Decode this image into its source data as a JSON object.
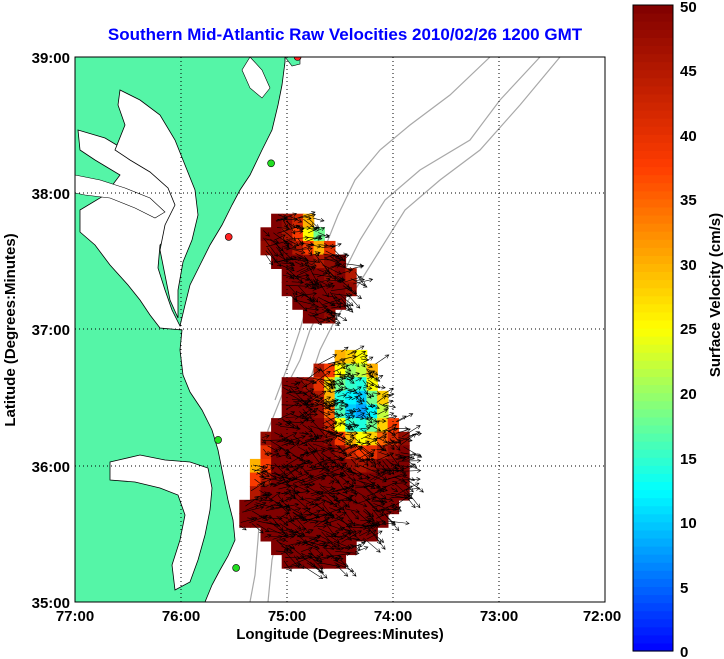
{
  "chart_data": {
    "type": "heatmap",
    "title": "Southern Mid-Atlantic Raw Velocities 2010/02/26 1200 GMT",
    "xlabel": "Longitude (Degrees:Minutes)",
    "ylabel": "Latitude (Degrees:Minutes)",
    "colorbar_label": "Surface Velocity (cm/s)",
    "x_range": [
      -77,
      -72
    ],
    "y_range": [
      35,
      39
    ],
    "x_ticks": [
      {
        "value": -77,
        "label": "77:00"
      },
      {
        "value": -76,
        "label": "76:00"
      },
      {
        "value": -75,
        "label": "75:00"
      },
      {
        "value": -74,
        "label": "74:00"
      },
      {
        "value": -73,
        "label": "73:00"
      },
      {
        "value": -72,
        "label": "72:00"
      }
    ],
    "y_ticks": [
      {
        "value": 35,
        "label": "35:00"
      },
      {
        "value": 36,
        "label": "36:00"
      },
      {
        "value": 37,
        "label": "37:00"
      },
      {
        "value": 38,
        "label": "38:00"
      },
      {
        "value": 39,
        "label": "39:00"
      }
    ],
    "colorbar": {
      "min": 0,
      "max": 50,
      "ticks": [
        {
          "value": 0,
          "label": "0"
        },
        {
          "value": 5,
          "label": "5"
        },
        {
          "value": 10,
          "label": "10"
        },
        {
          "value": 15,
          "label": "15"
        },
        {
          "value": 20,
          "label": "20"
        },
        {
          "value": 25,
          "label": "25"
        },
        {
          "value": 30,
          "label": "30"
        },
        {
          "value": 35,
          "label": "35"
        },
        {
          "value": 40,
          "label": "40"
        },
        {
          "value": 45,
          "label": "45"
        },
        {
          "value": 50,
          "label": "50"
        }
      ]
    },
    "grid": "dotted",
    "colors": {
      "title": "#0000ff",
      "land": "#55f5a7",
      "coast": "#000000",
      "bathymetry": "#a8a8a8",
      "vectors": "#000000",
      "station_green": "#22dd22",
      "station_red": "#ff2222"
    },
    "stations": [
      {
        "lon": -74.9,
        "lat": 39.0,
        "status": "red"
      },
      {
        "lon": -75.15,
        "lat": 38.22,
        "status": "green"
      },
      {
        "lon": -75.55,
        "lat": 37.68,
        "status": "red"
      },
      {
        "lon": -75.65,
        "lat": 36.19,
        "status": "green"
      },
      {
        "lon": -75.48,
        "lat": 35.25,
        "status": "green"
      }
    ],
    "velocity_regions": [
      {
        "name": "north",
        "cells": [
          [
            -75.1,
            37.8,
            50
          ],
          [
            -75.0,
            37.8,
            48
          ],
          [
            -74.9,
            37.8,
            42
          ],
          [
            -74.8,
            37.8,
            30
          ],
          [
            -75.2,
            37.7,
            50
          ],
          [
            -75.1,
            37.7,
            50
          ],
          [
            -75.0,
            37.7,
            46
          ],
          [
            -74.9,
            37.7,
            38
          ],
          [
            -74.8,
            37.7,
            25
          ],
          [
            -74.7,
            37.7,
            18
          ],
          [
            -75.2,
            37.6,
            48
          ],
          [
            -75.1,
            37.6,
            50
          ],
          [
            -75.0,
            37.6,
            50
          ],
          [
            -74.9,
            37.6,
            45
          ],
          [
            -74.8,
            37.6,
            38
          ],
          [
            -74.7,
            37.6,
            30
          ],
          [
            -74.6,
            37.6,
            40
          ],
          [
            -75.1,
            37.5,
            50
          ],
          [
            -75.0,
            37.5,
            50
          ],
          [
            -74.9,
            37.5,
            50
          ],
          [
            -74.8,
            37.5,
            48
          ],
          [
            -74.7,
            37.5,
            45
          ],
          [
            -74.6,
            37.5,
            48
          ],
          [
            -74.5,
            37.5,
            50
          ],
          [
            -75.0,
            37.4,
            50
          ],
          [
            -74.9,
            37.4,
            50
          ],
          [
            -74.8,
            37.4,
            50
          ],
          [
            -74.7,
            37.4,
            50
          ],
          [
            -74.6,
            37.4,
            48
          ],
          [
            -74.5,
            37.4,
            50
          ],
          [
            -74.4,
            37.4,
            45
          ],
          [
            -75.0,
            37.3,
            50
          ],
          [
            -74.9,
            37.3,
            50
          ],
          [
            -74.8,
            37.3,
            50
          ],
          [
            -74.7,
            37.3,
            50
          ],
          [
            -74.6,
            37.3,
            50
          ],
          [
            -74.5,
            37.3,
            50
          ],
          [
            -74.4,
            37.3,
            48
          ],
          [
            -74.9,
            37.2,
            50
          ],
          [
            -74.8,
            37.2,
            50
          ],
          [
            -74.7,
            37.2,
            50
          ],
          [
            -74.6,
            37.2,
            50
          ],
          [
            -74.5,
            37.2,
            50
          ],
          [
            -74.8,
            37.1,
            50
          ],
          [
            -74.7,
            37.1,
            50
          ],
          [
            -74.6,
            37.1,
            48
          ]
        ]
      },
      {
        "name": "south",
        "cells": [
          [
            -74.5,
            36.8,
            30
          ],
          [
            -74.4,
            36.8,
            28
          ],
          [
            -74.3,
            36.8,
            25
          ],
          [
            -74.7,
            36.7,
            45
          ],
          [
            -74.6,
            36.7,
            38
          ],
          [
            -74.5,
            36.7,
            25
          ],
          [
            -74.4,
            36.7,
            20
          ],
          [
            -74.3,
            36.7,
            22
          ],
          [
            -74.2,
            36.7,
            30
          ],
          [
            -75.0,
            36.6,
            50
          ],
          [
            -74.9,
            36.6,
            50
          ],
          [
            -74.8,
            36.6,
            48
          ],
          [
            -74.7,
            36.6,
            40
          ],
          [
            -74.6,
            36.6,
            28
          ],
          [
            -74.5,
            36.6,
            18
          ],
          [
            -74.4,
            36.6,
            15
          ],
          [
            -74.3,
            36.6,
            14
          ],
          [
            -74.2,
            36.6,
            25
          ],
          [
            -75.0,
            36.5,
            50
          ],
          [
            -74.9,
            36.5,
            50
          ],
          [
            -74.8,
            36.5,
            50
          ],
          [
            -74.7,
            36.5,
            45
          ],
          [
            -74.6,
            36.5,
            30
          ],
          [
            -74.5,
            36.5,
            14
          ],
          [
            -74.4,
            36.5,
            12
          ],
          [
            -74.3,
            36.5,
            10
          ],
          [
            -74.2,
            36.5,
            18
          ],
          [
            -74.1,
            36.5,
            28
          ],
          [
            -75.0,
            36.4,
            50
          ],
          [
            -74.9,
            36.4,
            50
          ],
          [
            -74.8,
            36.4,
            50
          ],
          [
            -74.7,
            36.4,
            48
          ],
          [
            -74.6,
            36.4,
            35
          ],
          [
            -74.5,
            36.4,
            16
          ],
          [
            -74.4,
            36.4,
            10
          ],
          [
            -74.3,
            36.4,
            8
          ],
          [
            -74.2,
            36.4,
            12
          ],
          [
            -74.1,
            36.4,
            22
          ],
          [
            -75.1,
            36.3,
            50
          ],
          [
            -75.0,
            36.3,
            50
          ],
          [
            -74.9,
            36.3,
            50
          ],
          [
            -74.8,
            36.3,
            50
          ],
          [
            -74.7,
            36.3,
            50
          ],
          [
            -74.6,
            36.3,
            42
          ],
          [
            -74.5,
            36.3,
            25
          ],
          [
            -74.4,
            36.3,
            15
          ],
          [
            -74.3,
            36.3,
            14
          ],
          [
            -74.2,
            36.3,
            18
          ],
          [
            -74.1,
            36.3,
            28
          ],
          [
            -74.0,
            36.3,
            38
          ],
          [
            -75.2,
            36.2,
            48
          ],
          [
            -75.1,
            36.2,
            50
          ],
          [
            -75.0,
            36.2,
            50
          ],
          [
            -74.9,
            36.2,
            50
          ],
          [
            -74.8,
            36.2,
            50
          ],
          [
            -74.7,
            36.2,
            50
          ],
          [
            -74.6,
            36.2,
            48
          ],
          [
            -74.5,
            36.2,
            38
          ],
          [
            -74.4,
            36.2,
            30
          ],
          [
            -74.3,
            36.2,
            25
          ],
          [
            -74.2,
            36.2,
            28
          ],
          [
            -74.1,
            36.2,
            35
          ],
          [
            -74.0,
            36.2,
            42
          ],
          [
            -73.9,
            36.2,
            48
          ],
          [
            -75.2,
            36.1,
            40
          ],
          [
            -75.1,
            36.1,
            50
          ],
          [
            -75.0,
            36.1,
            50
          ],
          [
            -74.9,
            36.1,
            50
          ],
          [
            -74.8,
            36.1,
            50
          ],
          [
            -74.7,
            36.1,
            50
          ],
          [
            -74.6,
            36.1,
            50
          ],
          [
            -74.5,
            36.1,
            48
          ],
          [
            -74.4,
            36.1,
            42
          ],
          [
            -74.3,
            36.1,
            38
          ],
          [
            -74.2,
            36.1,
            40
          ],
          [
            -74.1,
            36.1,
            45
          ],
          [
            -74.0,
            36.1,
            48
          ],
          [
            -73.9,
            36.1,
            50
          ],
          [
            -75.3,
            36.0,
            30
          ],
          [
            -75.2,
            36.0,
            38
          ],
          [
            -75.1,
            36.0,
            50
          ],
          [
            -75.0,
            36.0,
            50
          ],
          [
            -74.9,
            36.0,
            50
          ],
          [
            -74.8,
            36.0,
            50
          ],
          [
            -74.7,
            36.0,
            50
          ],
          [
            -74.6,
            36.0,
            50
          ],
          [
            -74.5,
            36.0,
            50
          ],
          [
            -74.4,
            36.0,
            48
          ],
          [
            -74.3,
            36.0,
            46
          ],
          [
            -74.2,
            36.0,
            48
          ],
          [
            -74.1,
            36.0,
            50
          ],
          [
            -74.0,
            36.0,
            50
          ],
          [
            -73.9,
            36.0,
            50
          ],
          [
            -75.3,
            35.9,
            38
          ],
          [
            -75.2,
            35.9,
            45
          ],
          [
            -75.1,
            35.9,
            50
          ],
          [
            -75.0,
            35.9,
            50
          ],
          [
            -74.9,
            35.9,
            50
          ],
          [
            -74.8,
            35.9,
            50
          ],
          [
            -74.7,
            35.9,
            50
          ],
          [
            -74.6,
            35.9,
            50
          ],
          [
            -74.5,
            35.9,
            50
          ],
          [
            -74.4,
            35.9,
            50
          ],
          [
            -74.3,
            35.9,
            50
          ],
          [
            -74.2,
            35.9,
            50
          ],
          [
            -74.1,
            35.9,
            50
          ],
          [
            -74.0,
            35.9,
            50
          ],
          [
            -73.9,
            35.9,
            50
          ],
          [
            -75.3,
            35.8,
            45
          ],
          [
            -75.2,
            35.8,
            50
          ],
          [
            -75.1,
            35.8,
            50
          ],
          [
            -75.0,
            35.8,
            50
          ],
          [
            -74.9,
            35.8,
            50
          ],
          [
            -74.8,
            35.8,
            50
          ],
          [
            -74.7,
            35.8,
            50
          ],
          [
            -74.6,
            35.8,
            50
          ],
          [
            -74.5,
            35.8,
            50
          ],
          [
            -74.4,
            35.8,
            50
          ],
          [
            -74.3,
            35.8,
            50
          ],
          [
            -74.2,
            35.8,
            50
          ],
          [
            -74.1,
            35.8,
            50
          ],
          [
            -74.0,
            35.8,
            50
          ],
          [
            -73.9,
            35.8,
            50
          ],
          [
            -75.4,
            35.7,
            50
          ],
          [
            -75.3,
            35.7,
            50
          ],
          [
            -75.2,
            35.7,
            50
          ],
          [
            -75.1,
            35.7,
            50
          ],
          [
            -75.0,
            35.7,
            50
          ],
          [
            -74.9,
            35.7,
            50
          ],
          [
            -74.8,
            35.7,
            50
          ],
          [
            -74.7,
            35.7,
            50
          ],
          [
            -74.6,
            35.7,
            50
          ],
          [
            -74.5,
            35.7,
            50
          ],
          [
            -74.4,
            35.7,
            50
          ],
          [
            -74.3,
            35.7,
            50
          ],
          [
            -74.2,
            35.7,
            50
          ],
          [
            -74.1,
            35.7,
            50
          ],
          [
            -74.0,
            35.7,
            50
          ],
          [
            -75.4,
            35.6,
            50
          ],
          [
            -75.3,
            35.6,
            50
          ],
          [
            -75.2,
            35.6,
            50
          ],
          [
            -75.1,
            35.6,
            50
          ],
          [
            -75.0,
            35.6,
            50
          ],
          [
            -74.9,
            35.6,
            50
          ],
          [
            -74.8,
            35.6,
            50
          ],
          [
            -74.7,
            35.6,
            50
          ],
          [
            -74.6,
            35.6,
            50
          ],
          [
            -74.5,
            35.6,
            50
          ],
          [
            -74.4,
            35.6,
            50
          ],
          [
            -74.3,
            35.6,
            50
          ],
          [
            -74.2,
            35.6,
            50
          ],
          [
            -74.1,
            35.6,
            50
          ],
          [
            -75.2,
            35.5,
            50
          ],
          [
            -75.1,
            35.5,
            50
          ],
          [
            -75.0,
            35.5,
            50
          ],
          [
            -74.9,
            35.5,
            50
          ],
          [
            -74.8,
            35.5,
            50
          ],
          [
            -74.7,
            35.5,
            50
          ],
          [
            -74.6,
            35.5,
            50
          ],
          [
            -74.5,
            35.5,
            50
          ],
          [
            -74.4,
            35.5,
            50
          ],
          [
            -74.3,
            35.5,
            50
          ],
          [
            -74.2,
            35.5,
            50
          ],
          [
            -75.1,
            35.4,
            50
          ],
          [
            -75.0,
            35.4,
            50
          ],
          [
            -74.9,
            35.4,
            50
          ],
          [
            -74.8,
            35.4,
            50
          ],
          [
            -74.7,
            35.4,
            50
          ],
          [
            -74.6,
            35.4,
            50
          ],
          [
            -74.5,
            35.4,
            50
          ],
          [
            -74.4,
            35.4,
            50
          ],
          [
            -75.0,
            35.3,
            50
          ],
          [
            -74.9,
            35.3,
            50
          ],
          [
            -74.8,
            35.3,
            50
          ],
          [
            -74.7,
            35.3,
            50
          ],
          [
            -74.6,
            35.3,
            50
          ],
          [
            -74.5,
            35.3,
            50
          ]
        ]
      }
    ]
  }
}
